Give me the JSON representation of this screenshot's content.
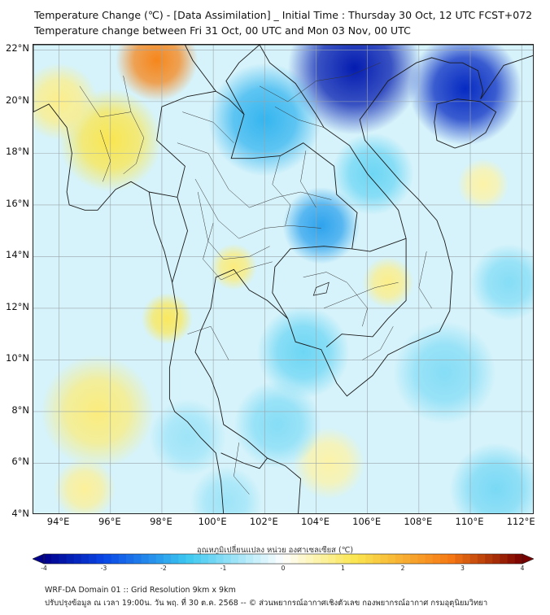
{
  "title_line1": "Temperature Change (℃) - [Data Assimilation] _ Initial Time : Thursday 30 Oct, 12 UTC FCST+072",
  "title_line2": "Temperature change between Fri 31 Oct, 00 UTC and Mon 03 Nov, 00 UTC",
  "map": {
    "lon_range": [
      93,
      112.5
    ],
    "lat_range": [
      4,
      22.2
    ],
    "lat_ticks": [
      "22°N",
      "20°N",
      "18°N",
      "16°N",
      "14°N",
      "12°N",
      "10°N",
      "8°N",
      "6°N",
      "4°N"
    ],
    "lat_values": [
      22,
      20,
      18,
      16,
      14,
      12,
      10,
      8,
      6,
      4
    ],
    "lon_ticks": [
      "94°E",
      "96°E",
      "98°E",
      "100°E",
      "102°E",
      "104°E",
      "106°E",
      "108°E",
      "110°E",
      "112°E"
    ],
    "lon_values": [
      94,
      96,
      98,
      100,
      102,
      104,
      106,
      108,
      110,
      112
    ],
    "field_blobs": [
      {
        "lon": 97.8,
        "lat": 21.6,
        "value": 2.6,
        "r": 1.6
      },
      {
        "lon": 96.0,
        "lat": 18.5,
        "value": 1.2,
        "r": 2.0
      },
      {
        "lon": 94.0,
        "lat": 20.0,
        "value": 0.8,
        "r": 1.5
      },
      {
        "lon": 98.2,
        "lat": 11.6,
        "value": 1.1,
        "r": 1.0
      },
      {
        "lon": 95.5,
        "lat": 8.0,
        "value": 0.9,
        "r": 2.2
      },
      {
        "lon": 100.8,
        "lat": 13.6,
        "value": 0.9,
        "r": 0.9
      },
      {
        "lon": 106.8,
        "lat": 13.0,
        "value": 0.8,
        "r": 1.0
      },
      {
        "lon": 104.5,
        "lat": 6.0,
        "value": 0.6,
        "r": 1.4
      },
      {
        "lon": 95.0,
        "lat": 5.0,
        "value": 0.7,
        "r": 1.2
      },
      {
        "lon": 110.5,
        "lat": 16.8,
        "value": 0.6,
        "r": 1.0
      },
      {
        "lon": 105.5,
        "lat": 21.3,
        "value": -3.6,
        "r": 2.6
      },
      {
        "lon": 109.8,
        "lat": 20.5,
        "value": -3.4,
        "r": 2.2
      },
      {
        "lon": 102.0,
        "lat": 19.3,
        "value": -1.8,
        "r": 2.2
      },
      {
        "lon": 104.2,
        "lat": 15.2,
        "value": -2.0,
        "r": 1.5
      },
      {
        "lon": 106.2,
        "lat": 17.2,
        "value": -1.2,
        "r": 1.6
      },
      {
        "lon": 103.5,
        "lat": 10.3,
        "value": -1.2,
        "r": 1.8
      },
      {
        "lon": 102.5,
        "lat": 7.5,
        "value": -1.0,
        "r": 1.7
      },
      {
        "lon": 109.0,
        "lat": 9.5,
        "value": -1.0,
        "r": 2.0
      },
      {
        "lon": 111.0,
        "lat": 5.0,
        "value": -1.1,
        "r": 1.8
      },
      {
        "lon": 99.0,
        "lat": 7.0,
        "value": -0.8,
        "r": 1.5
      },
      {
        "lon": 100.5,
        "lat": 4.5,
        "value": -0.8,
        "r": 1.4
      },
      {
        "lon": 111.5,
        "lat": 13.0,
        "value": -1.0,
        "r": 1.5
      }
    ],
    "land": [
      [
        [
          93.0,
          19.6
        ],
        [
          93.6,
          19.9
        ],
        [
          94.3,
          19.0
        ],
        [
          94.5,
          18.0
        ],
        [
          94.3,
          16.5
        ],
        [
          94.4,
          16.0
        ],
        [
          95.0,
          15.8
        ],
        [
          95.5,
          15.8
        ],
        [
          96.2,
          16.6
        ],
        [
          96.8,
          16.9
        ],
        [
          97.5,
          16.5
        ],
        [
          97.7,
          15.3
        ],
        [
          98.1,
          14.2
        ],
        [
          98.4,
          13.0
        ],
        [
          98.6,
          11.8
        ],
        [
          98.5,
          10.8
        ],
        [
          98.3,
          9.7
        ],
        [
          98.3,
          8.5
        ],
        [
          98.5,
          8.0
        ],
        [
          99.0,
          7.6
        ],
        [
          99.5,
          7.0
        ],
        [
          100.1,
          6.4
        ],
        [
          100.3,
          5.3
        ],
        [
          100.4,
          4.0
        ],
        [
          103.3,
          4.0
        ],
        [
          103.4,
          5.4
        ],
        [
          102.8,
          5.9
        ],
        [
          102.1,
          6.2
        ],
        [
          101.3,
          6.9
        ],
        [
          100.4,
          7.5
        ],
        [
          100.2,
          8.5
        ],
        [
          99.9,
          9.3
        ],
        [
          99.3,
          10.3
        ],
        [
          99.5,
          11.1
        ],
        [
          99.9,
          12.0
        ],
        [
          100.1,
          13.2
        ],
        [
          100.8,
          13.5
        ],
        [
          101.4,
          12.7
        ],
        [
          102.1,
          12.3
        ],
        [
          102.9,
          11.6
        ],
        [
          103.2,
          10.7
        ],
        [
          104.2,
          10.4
        ],
        [
          104.8,
          9.1
        ],
        [
          105.2,
          8.6
        ],
        [
          106.2,
          9.4
        ],
        [
          106.8,
          10.2
        ],
        [
          107.6,
          10.6
        ],
        [
          108.8,
          11.1
        ],
        [
          109.2,
          11.9
        ],
        [
          109.3,
          13.4
        ],
        [
          109.0,
          14.6
        ],
        [
          108.7,
          15.4
        ],
        [
          108.0,
          16.2
        ],
        [
          107.3,
          16.9
        ],
        [
          106.6,
          17.7
        ],
        [
          105.9,
          18.5
        ],
        [
          105.7,
          19.3
        ],
        [
          106.3,
          20.1
        ],
        [
          106.8,
          20.8
        ],
        [
          107.9,
          21.5
        ],
        [
          108.5,
          21.7
        ],
        [
          109.2,
          21.5
        ],
        [
          109.7,
          21.5
        ],
        [
          110.3,
          21.2
        ],
        [
          110.5,
          20.4
        ],
        [
          110.4,
          20.1
        ],
        [
          111.3,
          21.4
        ],
        [
          112.5,
          21.8
        ],
        [
          112.5,
          22.2
        ],
        [
          93.0,
          22.2
        ]
      ],
      [
        [
          108.7,
          19.9
        ],
        [
          109.5,
          20.1
        ],
        [
          110.4,
          20.0
        ],
        [
          111.0,
          19.6
        ],
        [
          110.6,
          18.8
        ],
        [
          110.0,
          18.4
        ],
        [
          109.4,
          18.2
        ],
        [
          108.7,
          18.5
        ],
        [
          108.6,
          19.2
        ]
      ]
    ],
    "borders": [
      [
        [
          97.5,
          16.5
        ],
        [
          98.6,
          16.3
        ],
        [
          98.9,
          17.5
        ],
        [
          97.8,
          18.5
        ],
        [
          98.0,
          19.8
        ],
        [
          99.0,
          20.2
        ],
        [
          100.1,
          20.4
        ]
      ],
      [
        [
          98.6,
          16.3
        ],
        [
          99.0,
          15.0
        ],
        [
          98.4,
          13.0
        ]
      ],
      [
        [
          100.1,
          20.4
        ],
        [
          100.6,
          20.1
        ],
        [
          101.2,
          19.5
        ],
        [
          100.7,
          17.8
        ],
        [
          101.5,
          17.8
        ],
        [
          102.6,
          17.9
        ],
        [
          103.5,
          18.4
        ],
        [
          104.7,
          17.5
        ],
        [
          104.8,
          16.4
        ],
        [
          105.6,
          15.7
        ],
        [
          105.4,
          14.3
        ]
      ],
      [
        [
          105.4,
          14.3
        ],
        [
          104.3,
          14.4
        ],
        [
          103.0,
          14.3
        ],
        [
          102.4,
          13.6
        ],
        [
          102.3,
          12.6
        ],
        [
          102.9,
          11.6
        ]
      ],
      [
        [
          105.4,
          14.3
        ],
        [
          106.1,
          14.2
        ],
        [
          107.5,
          14.7
        ]
      ],
      [
        [
          104.4,
          10.5
        ],
        [
          105.0,
          11.0
        ],
        [
          106.2,
          10.9
        ],
        [
          106.8,
          11.6
        ],
        [
          107.5,
          12.3
        ],
        [
          107.5,
          13.6
        ],
        [
          107.5,
          14.7
        ],
        [
          107.2,
          15.8
        ],
        [
          106.7,
          16.4
        ],
        [
          106.0,
          17.2
        ],
        [
          105.3,
          18.3
        ],
        [
          104.3,
          19.0
        ],
        [
          104.0,
          19.5
        ],
        [
          103.2,
          20.7
        ],
        [
          102.2,
          21.5
        ],
        [
          101.8,
          22.2
        ]
      ],
      [
        [
          101.2,
          19.5
        ],
        [
          100.5,
          20.8
        ],
        [
          101.0,
          21.5
        ],
        [
          101.8,
          22.2
        ]
      ],
      [
        [
          100.1,
          20.4
        ],
        [
          99.2,
          21.6
        ],
        [
          98.9,
          22.2
        ]
      ],
      [
        [
          100.3,
          6.4
        ],
        [
          101.2,
          6.0
        ],
        [
          101.8,
          5.8
        ],
        [
          102.1,
          6.2
        ]
      ]
    ],
    "provinces": [
      [
        [
          98.8,
          19.6
        ],
        [
          100.0,
          19.2
        ],
        [
          100.8,
          18.4
        ]
      ],
      [
        [
          98.6,
          18.4
        ],
        [
          99.8,
          18.0
        ],
        [
          100.6,
          16.6
        ],
        [
          101.4,
          15.9
        ],
        [
          102.5,
          16.3
        ],
        [
          103.4,
          16.5
        ],
        [
          104.6,
          16.2
        ]
      ],
      [
        [
          99.3,
          17.0
        ],
        [
          100.2,
          15.4
        ],
        [
          101.0,
          14.7
        ],
        [
          102.0,
          15.1
        ],
        [
          103.0,
          15.2
        ],
        [
          104.2,
          15.1
        ]
      ],
      [
        [
          102.6,
          17.9
        ],
        [
          102.3,
          16.8
        ],
        [
          103.0,
          16.0
        ],
        [
          102.8,
          15.2
        ]
      ],
      [
        [
          103.6,
          18.1
        ],
        [
          103.4,
          16.9
        ],
        [
          104.0,
          15.9
        ]
      ],
      [
        [
          99.4,
          16.5
        ],
        [
          99.8,
          14.6
        ],
        [
          100.4,
          13.9
        ],
        [
          101.4,
          14.0
        ],
        [
          102.2,
          14.4
        ]
      ],
      [
        [
          100.0,
          15.3
        ],
        [
          99.6,
          13.9
        ],
        [
          100.3,
          13.1
        ],
        [
          101.2,
          13.5
        ],
        [
          102.3,
          13.8
        ]
      ],
      [
        [
          99.0,
          11.0
        ],
        [
          99.9,
          11.3
        ],
        [
          100.6,
          10.0
        ]
      ],
      [
        [
          101.0,
          6.8
        ],
        [
          100.8,
          5.5
        ],
        [
          101.4,
          4.8
        ]
      ],
      [
        [
          104.3,
          12.0
        ],
        [
          105.3,
          12.4
        ],
        [
          106.3,
          12.8
        ],
        [
          107.2,
          13.0
        ]
      ],
      [
        [
          103.5,
          13.2
        ],
        [
          104.4,
          13.4
        ],
        [
          105.2,
          13.0
        ],
        [
          106.0,
          12.0
        ],
        [
          105.8,
          11.3
        ]
      ],
      [
        [
          102.4,
          19.8
        ],
        [
          103.3,
          19.3
        ],
        [
          104.3,
          19.0
        ]
      ],
      [
        [
          101.8,
          20.6
        ],
        [
          102.9,
          20.0
        ],
        [
          104.0,
          20.8
        ],
        [
          105.3,
          21.0
        ],
        [
          106.5,
          21.5
        ]
      ],
      [
        [
          105.8,
          10.0
        ],
        [
          106.5,
          10.4
        ],
        [
          107.0,
          11.3
        ]
      ],
      [
        [
          108.3,
          14.2
        ],
        [
          108.0,
          12.8
        ],
        [
          108.5,
          12.0
        ]
      ],
      [
        [
          96.5,
          21.0
        ],
        [
          96.8,
          19.6
        ],
        [
          97.3,
          18.6
        ],
        [
          97.0,
          17.6
        ],
        [
          96.5,
          17.2
        ]
      ],
      [
        [
          94.8,
          20.6
        ],
        [
          95.6,
          19.4
        ],
        [
          96.8,
          19.6
        ]
      ],
      [
        [
          95.6,
          18.9
        ],
        [
          96.0,
          17.7
        ],
        [
          95.7,
          16.9
        ]
      ]
    ],
    "lakes": [
      [
        [
          104.0,
          12.8
        ],
        [
          104.5,
          13.0
        ],
        [
          104.4,
          12.6
        ],
        [
          103.9,
          12.5
        ]
      ]
    ]
  },
  "colorbar": {
    "label": "อุณหภูมิเปลี่ยนแปลง หน่วย องศาเซลเซียส (℃)",
    "min": -4,
    "max": 4,
    "tick_labels": [
      "-4",
      "-3",
      "-2",
      "-1",
      "0",
      "1",
      "2",
      "3",
      "4"
    ],
    "tick_values": [
      -4,
      -3,
      -2,
      -1,
      0,
      1,
      2,
      3,
      4
    ]
  },
  "footer_line1": "WRF-DA Domain 01 :: Grid Resolution 9km x 9km",
  "footer_line2": "ปรับปรุงข้อมูล ณ เวลา 19:00น. วัน พฤ. ที่ 30 ต.ค. 2568 -- © ส่วนพยากรณ์อากาศเชิงตัวเลข กองพยากรณ์อากาศ กรมอุตุนิยมวิทยา",
  "colors": {
    "strong_cold": "#00008c",
    "cold": "#0a46e6",
    "cool": "#3cc8f0",
    "neutral": "#ffffff",
    "warm": "#fae650",
    "hot": "#f57814",
    "strong_hot": "#780000"
  }
}
